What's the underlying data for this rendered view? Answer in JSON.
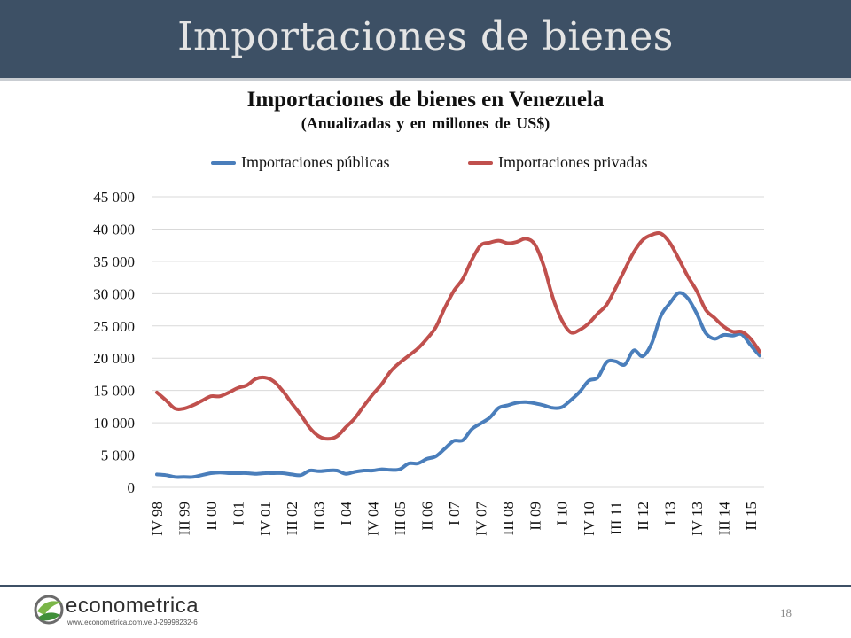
{
  "slide": {
    "title": "Importaciones de bienes",
    "page_number": "18",
    "logo": {
      "name": "econometrica",
      "subtext": "www.econometrica.com.ve   J-29998232-6"
    }
  },
  "colors": {
    "header": "#3d5065",
    "publicas": "#4a7ebb",
    "privadas": "#c0504d",
    "grid": "#d9d9d9"
  },
  "chart_data": {
    "type": "line",
    "title": "Importaciones de bienes en Venezuela",
    "subtitle": "(Anualizadas y en millones de US$)",
    "legend_placement": "top",
    "grid": true,
    "ylim": [
      0,
      45000
    ],
    "yticks": [
      "0",
      "5 000",
      "10 000",
      "15 000",
      "20 000",
      "25 000",
      "30 000",
      "35 000",
      "40 000",
      "45 000"
    ],
    "ytick_values": [
      0,
      5000,
      10000,
      15000,
      20000,
      25000,
      30000,
      35000,
      40000,
      45000
    ],
    "xticks": [
      {
        "label": "IV 98",
        "index": 0
      },
      {
        "label": "III 99",
        "index": 3
      },
      {
        "label": "II 00",
        "index": 6
      },
      {
        "label": "I 01",
        "index": 9
      },
      {
        "label": "IV 01",
        "index": 12
      },
      {
        "label": "III 02",
        "index": 15
      },
      {
        "label": "II 03",
        "index": 18
      },
      {
        "label": "I 04",
        "index": 21
      },
      {
        "label": "IV 04",
        "index": 24
      },
      {
        "label": "III 05",
        "index": 27
      },
      {
        "label": "II 06",
        "index": 30
      },
      {
        "label": "I 07",
        "index": 33
      },
      {
        "label": "IV 07",
        "index": 36
      },
      {
        "label": "III 08",
        "index": 39
      },
      {
        "label": "II 09",
        "index": 42
      },
      {
        "label": "I 10",
        "index": 45
      },
      {
        "label": "IV 10",
        "index": 48
      },
      {
        "label": "III 11",
        "index": 51
      },
      {
        "label": "II 12",
        "index": 54
      },
      {
        "label": "I 13",
        "index": 57
      },
      {
        "label": "IV 13",
        "index": 60
      },
      {
        "label": "III 14",
        "index": 63
      },
      {
        "label": "II 15",
        "index": 66
      }
    ],
    "series": [
      {
        "name": "Importaciones públicas",
        "color": "#4a7ebb",
        "values": [
          2000,
          1900,
          1600,
          1600,
          1600,
          1900,
          2200,
          2300,
          2200,
          2200,
          2200,
          2100,
          2200,
          2200,
          2200,
          2000,
          1900,
          2600,
          2500,
          2600,
          2600,
          2100,
          2400,
          2600,
          2600,
          2800,
          2700,
          2800,
          3700,
          3700,
          4400,
          4800,
          6000,
          7200,
          7300,
          9000,
          9900,
          10800,
          12300,
          12700,
          13100,
          13200,
          13000,
          12700,
          12300,
          12400,
          13500,
          14800,
          16500,
          17000,
          19400,
          19500,
          19000,
          21200,
          20300,
          22300,
          26500,
          28500,
          30100,
          29300,
          26900,
          23900,
          23000,
          23600,
          23500,
          23700,
          22000,
          20400
        ]
      },
      {
        "name": "Importaciones privadas",
        "color": "#c0504d",
        "values": [
          14700,
          13500,
          12200,
          12200,
          12700,
          13400,
          14100,
          14100,
          14700,
          15400,
          15800,
          16800,
          17000,
          16400,
          14900,
          13000,
          11200,
          9200,
          7900,
          7500,
          7900,
          9300,
          10700,
          12600,
          14400,
          16000,
          18000,
          19300,
          20400,
          21500,
          23000,
          24800,
          27800,
          30400,
          32300,
          35200,
          37500,
          37900,
          38200,
          37800,
          38000,
          38500,
          37600,
          34300,
          29400,
          25900,
          24000,
          24400,
          25400,
          26900,
          28300,
          30900,
          33700,
          36400,
          38300,
          39100,
          39300,
          37900,
          35400,
          32700,
          30400,
          27500,
          26200,
          24900,
          24100,
          24100,
          23000,
          21000
        ]
      }
    ]
  }
}
